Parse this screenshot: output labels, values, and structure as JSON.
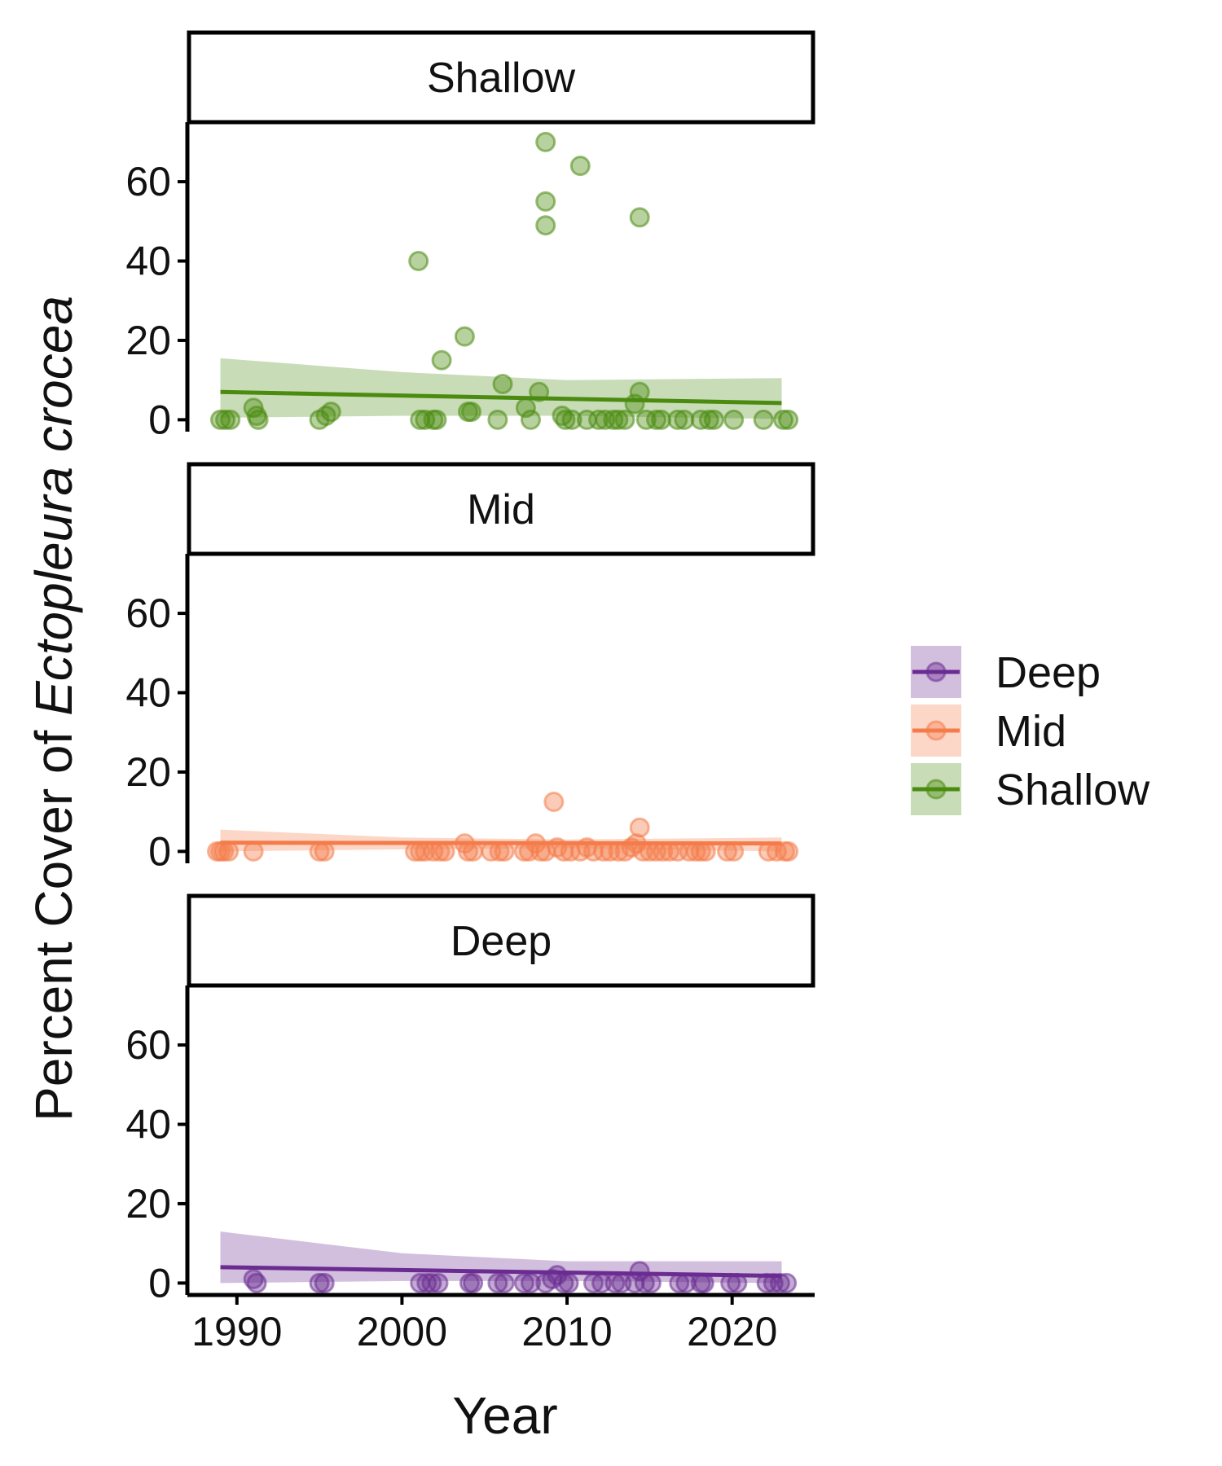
{
  "chart_data": {
    "type": "scatter",
    "xlabel": "Year",
    "ylabel_prefix": "Percent Cover of ",
    "ylabel_species": "Ectopleura crocea",
    "xlim": [
      1987,
      2025
    ],
    "ylim": [
      -3,
      75
    ],
    "x_ticks": [
      1990,
      2000,
      2010,
      2020
    ],
    "y_ticks": [
      0,
      20,
      40,
      60
    ],
    "grid": false,
    "legend_position": "right",
    "colors": {
      "Deep": "#6a2c91",
      "Mid": "#f47c4a",
      "Shallow": "#4a8b10"
    },
    "legend": [
      "Deep",
      "Mid",
      "Shallow"
    ],
    "panels": [
      {
        "label": "Shallow",
        "series": "Shallow",
        "trend": {
          "x": [
            1989,
            2023
          ],
          "y": [
            7.0,
            4.2
          ]
        },
        "ribbon": {
          "x": [
            1989,
            2000,
            2010,
            2023
          ],
          "lower": [
            0.5,
            1.0,
            1.0,
            0.2
          ],
          "upper": [
            15.5,
            12.0,
            10.0,
            10.5
          ]
        },
        "points": [
          [
            1989,
            0
          ],
          [
            1989.3,
            0
          ],
          [
            1989.6,
            0
          ],
          [
            1991,
            3
          ],
          [
            1991.2,
            1
          ],
          [
            1991.3,
            0
          ],
          [
            1995,
            0
          ],
          [
            1995.4,
            1
          ],
          [
            1995.7,
            2
          ],
          [
            2001,
            40
          ],
          [
            2001.1,
            0
          ],
          [
            2001.4,
            0
          ],
          [
            2001.9,
            0
          ],
          [
            2002.1,
            0
          ],
          [
            2002.4,
            15
          ],
          [
            2003.8,
            21
          ],
          [
            2004,
            2
          ],
          [
            2004.2,
            2
          ],
          [
            2005.8,
            0
          ],
          [
            2006.1,
            9
          ],
          [
            2007.5,
            3
          ],
          [
            2007.8,
            0
          ],
          [
            2008.3,
            7
          ],
          [
            2008.7,
            70
          ],
          [
            2008.7,
            55
          ],
          [
            2008.7,
            49
          ],
          [
            2009.7,
            1
          ],
          [
            2009.9,
            0
          ],
          [
            2010.3,
            0
          ],
          [
            2010.8,
            64
          ],
          [
            2011.2,
            0
          ],
          [
            2011.9,
            0
          ],
          [
            2012.3,
            0
          ],
          [
            2012.8,
            0
          ],
          [
            2013.1,
            0
          ],
          [
            2013.5,
            0
          ],
          [
            2014.1,
            4
          ],
          [
            2014.4,
            51
          ],
          [
            2014.4,
            7
          ],
          [
            2014.8,
            0
          ],
          [
            2015.4,
            0
          ],
          [
            2015.7,
            0
          ],
          [
            2016.7,
            0
          ],
          [
            2017.1,
            0
          ],
          [
            2018.1,
            0
          ],
          [
            2018.6,
            0
          ],
          [
            2018.9,
            0
          ],
          [
            2020.1,
            0
          ],
          [
            2021.9,
            0
          ],
          [
            2023.1,
            0
          ],
          [
            2023.4,
            0
          ]
        ]
      },
      {
        "label": "Mid",
        "series": "Mid",
        "trend": {
          "x": [
            1989,
            2023
          ],
          "y": [
            2.2,
            2.0
          ]
        },
        "ribbon": {
          "x": [
            1989,
            2000,
            2010,
            2023
          ],
          "lower": [
            0,
            0.5,
            0.8,
            0
          ],
          "upper": [
            5.5,
            3.5,
            3.0,
            3.5
          ]
        },
        "points": [
          [
            1988.8,
            0
          ],
          [
            1989,
            0
          ],
          [
            1989.2,
            0
          ],
          [
            1989.5,
            0
          ],
          [
            1991,
            0
          ],
          [
            1995,
            0
          ],
          [
            1995.3,
            0
          ],
          [
            2000.8,
            0
          ],
          [
            2001.1,
            0
          ],
          [
            2001.4,
            0
          ],
          [
            2001.9,
            0
          ],
          [
            2002.3,
            0
          ],
          [
            2002.6,
            0
          ],
          [
            2003.8,
            2
          ],
          [
            2004,
            0
          ],
          [
            2004.3,
            0
          ],
          [
            2005.4,
            0
          ],
          [
            2005.9,
            0
          ],
          [
            2006.2,
            0
          ],
          [
            2007.4,
            0
          ],
          [
            2007.7,
            0
          ],
          [
            2008.1,
            2
          ],
          [
            2008.4,
            0
          ],
          [
            2008.7,
            0
          ],
          [
            2009.2,
            12.5
          ],
          [
            2009.4,
            1
          ],
          [
            2009.8,
            0
          ],
          [
            2010.2,
            0
          ],
          [
            2010.8,
            0
          ],
          [
            2011.2,
            1
          ],
          [
            2011.6,
            0
          ],
          [
            2012.2,
            0
          ],
          [
            2012.6,
            0
          ],
          [
            2013.1,
            0
          ],
          [
            2013.5,
            0
          ],
          [
            2013.9,
            1
          ],
          [
            2014.2,
            2
          ],
          [
            2014.4,
            6
          ],
          [
            2014.6,
            0
          ],
          [
            2015,
            0
          ],
          [
            2015.4,
            0
          ],
          [
            2015.8,
            0
          ],
          [
            2016.2,
            0
          ],
          [
            2016.7,
            0
          ],
          [
            2017.4,
            0
          ],
          [
            2017.8,
            0
          ],
          [
            2018.1,
            0
          ],
          [
            2018.4,
            0
          ],
          [
            2019.7,
            0
          ],
          [
            2020.1,
            0
          ],
          [
            2022.2,
            0
          ],
          [
            2022.7,
            0
          ],
          [
            2023.2,
            0
          ],
          [
            2023.4,
            0
          ]
        ]
      },
      {
        "label": "Deep",
        "series": "Deep",
        "trend": {
          "x": [
            1989,
            2023
          ],
          "y": [
            4.0,
            1.8
          ]
        },
        "ribbon": {
          "x": [
            1989,
            2000,
            2010,
            2023
          ],
          "lower": [
            0,
            0.5,
            0.5,
            0
          ],
          "upper": [
            13.0,
            7.5,
            5.5,
            5.5
          ]
        },
        "points": [
          [
            1991,
            1
          ],
          [
            1991.2,
            0
          ],
          [
            1995,
            0
          ],
          [
            1995.3,
            0
          ],
          [
            2001.1,
            0
          ],
          [
            2001.5,
            0
          ],
          [
            2001.8,
            0
          ],
          [
            2002.2,
            0
          ],
          [
            2004.1,
            0
          ],
          [
            2004.3,
            0
          ],
          [
            2005.8,
            0
          ],
          [
            2006.2,
            0
          ],
          [
            2007.4,
            0
          ],
          [
            2007.8,
            0
          ],
          [
            2008.7,
            0
          ],
          [
            2009.1,
            1
          ],
          [
            2009.4,
            2
          ],
          [
            2009.8,
            0
          ],
          [
            2010.1,
            0
          ],
          [
            2011.6,
            0
          ],
          [
            2012.1,
            0
          ],
          [
            2012.9,
            0
          ],
          [
            2013.3,
            0
          ],
          [
            2014.1,
            0
          ],
          [
            2014.4,
            3
          ],
          [
            2014.7,
            0
          ],
          [
            2015.1,
            0
          ],
          [
            2016.8,
            0
          ],
          [
            2017.2,
            0
          ],
          [
            2018.1,
            0
          ],
          [
            2018.3,
            0
          ],
          [
            2019.9,
            0
          ],
          [
            2020.3,
            0
          ],
          [
            2022.1,
            0
          ],
          [
            2022.5,
            0
          ],
          [
            2022.9,
            0
          ],
          [
            2023.3,
            0
          ]
        ]
      }
    ]
  }
}
